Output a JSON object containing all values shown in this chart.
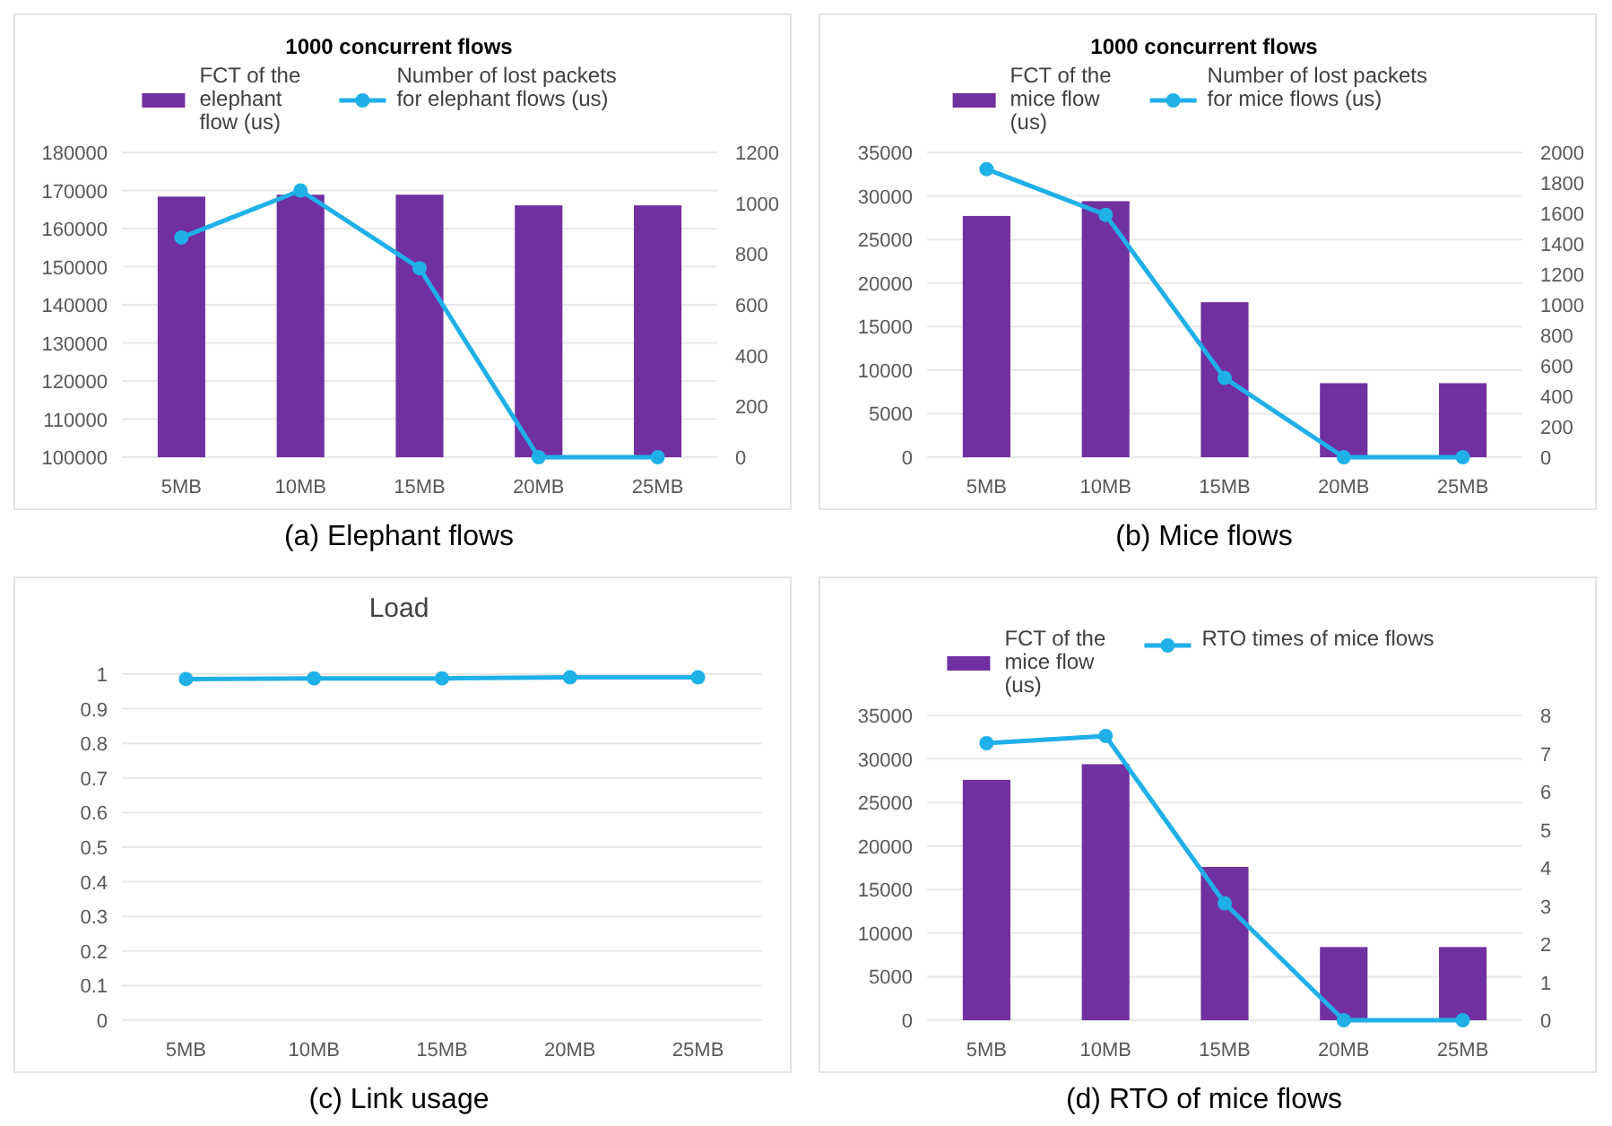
{
  "chart_data": [
    {
      "type": "bar",
      "title": "1000 concurrent flows",
      "categories": [
        "5MB",
        "10MB",
        "15MB",
        "20MB",
        "25MB"
      ],
      "series": [
        {
          "name": "FCT of the elephant flow (us)",
          "color": "#7030a0",
          "values": [
            168400,
            168900,
            168900,
            166100,
            166100
          ]
        },
        {
          "name": "Number of lost packets for elephant flows (us)",
          "type": "line",
          "axis": "y2",
          "color": "#1fb0e8",
          "values": [
            865,
            1050,
            744,
            0,
            0
          ]
        }
      ],
      "ylim": [
        100000,
        180000
      ],
      "yticks": [
        100000,
        110000,
        120000,
        130000,
        140000,
        150000,
        160000,
        170000,
        180000
      ],
      "y2lim": [
        0,
        1200
      ],
      "y2ticks": [
        0,
        200,
        400,
        600,
        800,
        1000,
        1200
      ],
      "grid": "y",
      "legend": "top",
      "marker": "circle",
      "annotations": [
        "(a) Elephant flows"
      ]
    },
    {
      "type": "bar",
      "title": "1000 concurrent flows",
      "categories": [
        "5MB",
        "10MB",
        "15MB",
        "20MB",
        "25MB"
      ],
      "series": [
        {
          "name": "FCT of the mice flow (us)",
          "color": "#7030a0",
          "values": [
            27700,
            29400,
            17800,
            8500,
            8500
          ]
        },
        {
          "name": "Number of lost packets for mice flows (us)",
          "type": "line",
          "axis": "y2",
          "color": "#1fb0e8",
          "values": [
            1890,
            1590,
            520,
            0,
            0
          ]
        }
      ],
      "ylim": [
        0,
        35000
      ],
      "yticks": [
        0,
        5000,
        10000,
        15000,
        20000,
        25000,
        30000,
        35000
      ],
      "y2lim": [
        0,
        2000
      ],
      "y2ticks": [
        0,
        200,
        400,
        600,
        800,
        1000,
        1200,
        1400,
        1600,
        1800,
        2000
      ],
      "grid": "y",
      "legend": "top",
      "marker": "circle",
      "annotations": [
        "(b) Mice flows"
      ]
    },
    {
      "type": "line",
      "title": "Load",
      "categories": [
        "5MB",
        "10MB",
        "15MB",
        "20MB",
        "25MB"
      ],
      "series": [
        {
          "color": "#1fb0e8",
          "values": [
            0.986,
            0.988,
            0.988,
            0.991,
            0.991
          ]
        }
      ],
      "ylim": [
        0,
        1
      ],
      "yticks": [
        0,
        0.1,
        0.2,
        0.3,
        0.4,
        0.5,
        0.6,
        0.7,
        0.8,
        0.9,
        1
      ],
      "grid": "y",
      "marker": "circle",
      "annotations": [
        "(c) Link usage"
      ]
    },
    {
      "type": "bar",
      "categories": [
        "5MB",
        "10MB",
        "15MB",
        "20MB",
        "25MB"
      ],
      "series": [
        {
          "name": "FCT of the mice flow (us)",
          "color": "#7030a0",
          "values": [
            27600,
            29400,
            17600,
            8400,
            8400
          ]
        },
        {
          "name": "RTO times of mice flows",
          "type": "line",
          "axis": "y2",
          "color": "#1fb0e8",
          "values": [
            7.27,
            7.46,
            3.07,
            0,
            0
          ]
        }
      ],
      "ylim": [
        0,
        35000
      ],
      "yticks": [
        0,
        5000,
        10000,
        15000,
        20000,
        25000,
        30000,
        35000
      ],
      "y2lim": [
        0,
        8
      ],
      "y2ticks": [
        0,
        1,
        2,
        3,
        4,
        5,
        6,
        7,
        8
      ],
      "grid": "y",
      "legend": "top",
      "marker": "circle",
      "annotations": [
        "(d) RTO of mice flows"
      ]
    }
  ]
}
